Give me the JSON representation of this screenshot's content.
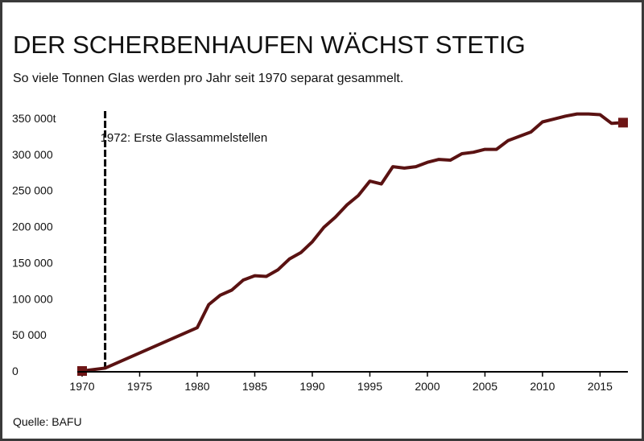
{
  "title": "DER SCHERBENHAUFEN WÄCHST STETIG",
  "subtitle": "So viele Tonnen Glas werden pro Jahr seit 1970 separat gesammelt.",
  "source": "Quelle: BAFU",
  "colors": {
    "line": "#5a1212",
    "marker": "#6e1616",
    "axis": "#000000",
    "event_line": "#000000"
  },
  "chart_data": {
    "type": "line",
    "title": "DER SCHERBENHAUFEN WÄCHST STETIG",
    "subtitle": "So viele Tonnen Glas werden pro Jahr seit 1970 separat gesammelt.",
    "xlabel": "",
    "ylabel": "",
    "xlim": [
      1970,
      2017
    ],
    "ylim": [
      0,
      350000
    ],
    "x_ticks": [
      1970,
      1975,
      1980,
      1985,
      1990,
      1995,
      2000,
      2005,
      2010,
      2015
    ],
    "y_ticks": [
      {
        "value": 0,
        "label": "0"
      },
      {
        "value": 50000,
        "label": "50 000"
      },
      {
        "value": 100000,
        "label": "100 000"
      },
      {
        "value": 150000,
        "label": "150 000"
      },
      {
        "value": 200000,
        "label": "200 000"
      },
      {
        "value": 250000,
        "label": "250 000"
      },
      {
        "value": 300000,
        "label": "300 000"
      },
      {
        "value": 350000,
        "label": "350 000t"
      }
    ],
    "grid": false,
    "annotations": [
      {
        "x": 1972,
        "text": "1972: Erste Glassammelstellen",
        "type": "vertical-dashed-line"
      }
    ],
    "series": [
      {
        "x": [
          1970,
          1972,
          1980,
          1981,
          1982,
          1983,
          1984,
          1985,
          1986,
          1987,
          1988,
          1989,
          1990,
          1991,
          1992,
          1993,
          1994,
          1995,
          1996,
          1997,
          1998,
          1999,
          2000,
          2001,
          2002,
          2003,
          2004,
          2005,
          2006,
          2007,
          2008,
          2009,
          2010,
          2011,
          2012,
          2013,
          2014,
          2015,
          2016,
          2017
        ],
        "values": [
          0,
          4000,
          60000,
          92000,
          105000,
          112000,
          126000,
          132000,
          131000,
          140000,
          155000,
          164000,
          179000,
          199000,
          213000,
          230000,
          243000,
          263000,
          259000,
          283000,
          281000,
          283000,
          289000,
          293000,
          292000,
          301000,
          303000,
          307000,
          307000,
          319000,
          325000,
          331000,
          345000,
          349000,
          353000,
          356000,
          356000,
          355000,
          343000,
          344000
        ]
      }
    ],
    "markers": [
      {
        "x": 1970,
        "y": 0
      },
      {
        "x": 2017,
        "y": 344000
      }
    ]
  }
}
